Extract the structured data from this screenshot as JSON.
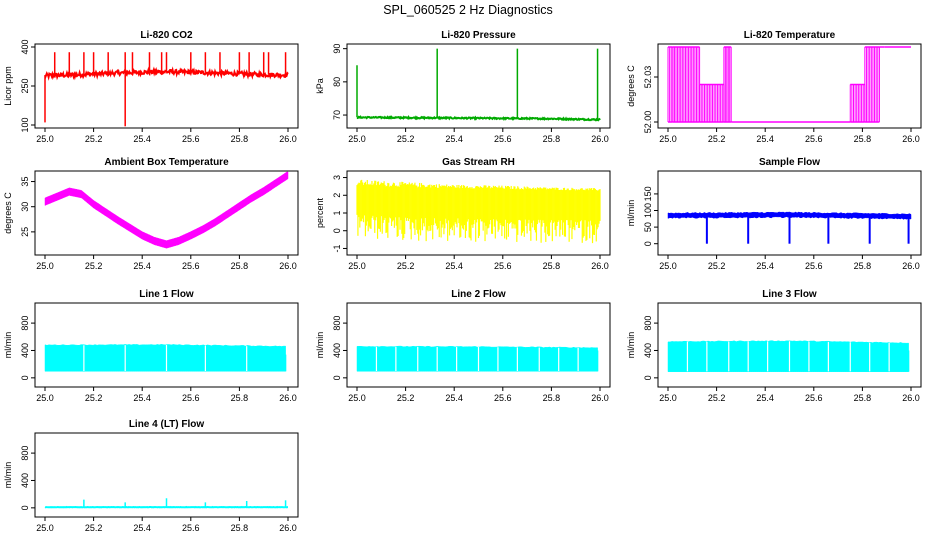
{
  "figure": {
    "title": "SPL_060525  2 Hz Diagnostics"
  },
  "chart_data": [
    {
      "id": "li820-co2",
      "type": "line",
      "title": "Li-820 CO2",
      "xlabel": "",
      "ylabel": "Licor ppm",
      "xlim": [
        25.0,
        26.0
      ],
      "ylim": [
        100,
        400
      ],
      "xticks": [
        25.0,
        25.2,
        25.4,
        25.6,
        25.8,
        26.0
      ],
      "yticks": [
        100,
        250,
        400
      ],
      "xtick_labels": [
        "25.0",
        "25.2",
        "25.4",
        "25.6",
        "25.8",
        "26.0"
      ],
      "ytick_labels": [
        "100",
        "250",
        "400"
      ],
      "color": "#ff0000",
      "series": [
        {
          "name": "CO2",
          "pattern": "baseline_spikes",
          "x": [
            25.0,
            25.1,
            25.2,
            25.3,
            25.4,
            25.5,
            25.6,
            25.7,
            25.8,
            25.9,
            26.0
          ],
          "values": [
            290,
            292,
            296,
            300,
            303,
            305,
            303,
            300,
            297,
            294,
            292
          ],
          "noise": 8,
          "up_spikes": [
            [
              25.04,
              380
            ],
            [
              25.1,
              380
            ],
            [
              25.16,
              380
            ],
            [
              25.2,
              380
            ],
            [
              25.26,
              380
            ],
            [
              25.33,
              380
            ],
            [
              25.36,
              380
            ],
            [
              25.43,
              380
            ],
            [
              25.48,
              380
            ],
            [
              25.5,
              380
            ],
            [
              25.6,
              380
            ],
            [
              25.66,
              380
            ],
            [
              25.72,
              380
            ],
            [
              25.8,
              380
            ],
            [
              25.84,
              380
            ],
            [
              25.9,
              380
            ],
            [
              25.92,
              380
            ],
            [
              25.99,
              380
            ]
          ],
          "down_spikes": [
            [
              25.0,
              110
            ],
            [
              25.33,
              95
            ]
          ]
        }
      ]
    },
    {
      "id": "li820-pressure",
      "type": "line",
      "title": "Li-820 Pressure",
      "xlabel": "",
      "ylabel": "kPa",
      "xlim": [
        25.0,
        26.0
      ],
      "ylim": [
        67,
        90.5
      ],
      "xticks": [
        25.0,
        25.2,
        25.4,
        25.6,
        25.8,
        26.0
      ],
      "yticks": [
        70,
        80,
        90
      ],
      "xtick_labels": [
        "25.0",
        "25.2",
        "25.4",
        "25.6",
        "25.8",
        "26.0"
      ],
      "ytick_labels": [
        "70",
        "80",
        "90"
      ],
      "color": "#00aa00",
      "series": [
        {
          "name": "Pressure",
          "pattern": "baseline_spikes",
          "x": [
            25.0,
            25.2,
            25.4,
            25.6,
            25.8,
            26.0
          ],
          "values": [
            69.3,
            69.2,
            69.1,
            69.0,
            68.9,
            68.6
          ],
          "noise": 0.2,
          "up_spikes": [
            [
              25.0,
              85
            ],
            [
              25.33,
              90
            ],
            [
              25.66,
              90
            ],
            [
              25.99,
              90
            ]
          ],
          "down_spikes": []
        }
      ]
    },
    {
      "id": "li820-temperature",
      "type": "line",
      "title": "Li-820 Temperature",
      "xlabel": "",
      "ylabel": "degrees C",
      "xlim": [
        25.0,
        26.0
      ],
      "ylim": [
        51.998,
        52.05
      ],
      "xticks": [
        25.0,
        25.2,
        25.4,
        25.6,
        25.8,
        26.0
      ],
      "yticks": [
        52.0,
        52.03
      ],
      "xtick_labels": [
        "25.0",
        "25.2",
        "25.4",
        "25.6",
        "25.8",
        "26.0"
      ],
      "ytick_labels": [
        "52.00",
        "52.03"
      ],
      "color": "#ff00ff",
      "series": [
        {
          "name": "Temperature",
          "pattern": "quantized_band",
          "segments": [
            [
              25.0,
              25.02,
              52.0,
              52.05
            ],
            [
              25.02,
              25.13,
              52.0,
              52.05
            ],
            [
              25.13,
              25.23,
              52.0,
              52.025
            ],
            [
              25.23,
              25.26,
              52.0,
              52.05
            ],
            [
              25.26,
              25.75,
              52.0,
              52.0
            ],
            [
              25.75,
              25.81,
              52.0,
              52.025
            ],
            [
              25.81,
              25.87,
              52.0,
              52.05
            ],
            [
              25.87,
              25.89,
              52.05,
              52.05
            ],
            [
              25.89,
              26.0,
              52.05,
              52.05
            ]
          ]
        }
      ]
    },
    {
      "id": "ambient-box-temperature",
      "type": "line",
      "title": "Ambient Box Temperature",
      "xlabel": "",
      "ylabel": "degrees C",
      "xlim": [
        25.0,
        26.0
      ],
      "ylim": [
        21,
        36.5
      ],
      "xticks": [
        25.0,
        25.2,
        25.4,
        25.6,
        25.8,
        26.0
      ],
      "yticks": [
        25,
        30,
        35
      ],
      "xtick_labels": [
        "25.0",
        "25.2",
        "25.4",
        "25.6",
        "25.8",
        "26.0"
      ],
      "ytick_labels": [
        "25",
        "30",
        "35"
      ],
      "color": "#ff00ff",
      "series": [
        {
          "name": "Ambient",
          "pattern": "band",
          "x": [
            25.0,
            25.05,
            25.1,
            25.15,
            25.2,
            25.25,
            25.3,
            25.35,
            25.4,
            25.45,
            25.5,
            25.55,
            25.6,
            25.65,
            25.7,
            25.75,
            25.8,
            25.85,
            25.9,
            25.95,
            26.0
          ],
          "values": [
            31,
            32,
            33,
            32.5,
            30.5,
            28.9,
            27.3,
            25.8,
            24.3,
            23.2,
            22.5,
            23.2,
            24.3,
            25.5,
            26.9,
            28.5,
            30.1,
            31.7,
            33.1,
            34.7,
            36.3
          ],
          "halfwidth": 0.75
        }
      ]
    },
    {
      "id": "gas-stream-rh",
      "type": "line",
      "title": "Gas Stream RH",
      "xlabel": "",
      "ylabel": "percent",
      "xlim": [
        25.0,
        26.0
      ],
      "ylim": [
        -1.2,
        3.2
      ],
      "xticks": [
        25.0,
        25.2,
        25.4,
        25.6,
        25.8,
        26.0
      ],
      "yticks": [
        -1,
        0,
        1,
        2,
        3
      ],
      "xtick_labels": [
        "25.0",
        "25.2",
        "25.4",
        "25.6",
        "25.8",
        "26.0"
      ],
      "ytick_labels": [
        "-1",
        "0",
        "1",
        "2",
        "3"
      ],
      "color": "#ffff00",
      "series": [
        {
          "name": "RH",
          "pattern": "envelope",
          "x": [
            25.0,
            25.2,
            25.4,
            25.6,
            25.8,
            26.0
          ],
          "upper": [
            2.9,
            2.75,
            2.6,
            2.55,
            2.45,
            2.4
          ],
          "core_upper": [
            2.55,
            2.45,
            2.4,
            2.35,
            2.3,
            2.25
          ],
          "core_lower": [
            0.9,
            0.75,
            0.7,
            0.65,
            0.6,
            0.6
          ],
          "lower": [
            -0.5,
            -0.6,
            -0.7,
            -0.7,
            -0.75,
            -0.7
          ]
        }
      ]
    },
    {
      "id": "sample-flow",
      "type": "line",
      "title": "Sample Flow",
      "xlabel": "",
      "ylabel": "ml/min",
      "xlim": [
        25.0,
        26.0
      ],
      "ylim": [
        -25,
        210
      ],
      "xticks": [
        25.0,
        25.2,
        25.4,
        25.6,
        25.8,
        26.0
      ],
      "yticks": [
        0,
        50,
        100,
        150
      ],
      "xtick_labels": [
        "25.0",
        "25.2",
        "25.4",
        "25.6",
        "25.8",
        "26.0"
      ],
      "ytick_labels": [
        "0",
        "50",
        "100",
        "150"
      ],
      "color": "#0000ff",
      "series": [
        {
          "name": "Sample",
          "pattern": "band_gaps",
          "x": [
            25.0,
            25.5,
            26.0
          ],
          "values": [
            85,
            87,
            82
          ],
          "halfwidth": 9,
          "gaps": [
            25.16,
            25.33,
            25.5,
            25.66,
            25.83,
            25.99
          ],
          "gap_min": 0
        }
      ]
    },
    {
      "id": "line-1-flow",
      "type": "line",
      "title": "Line 1 Flow",
      "xlabel": "",
      "ylabel": "ml/min",
      "xlim": [
        25.0,
        26.0
      ],
      "ylim": [
        -90,
        1050
      ],
      "xticks": [
        25.0,
        25.2,
        25.4,
        25.6,
        25.8,
        26.0
      ],
      "yticks": [
        0,
        400,
        800
      ],
      "xtick_labels": [
        "25.0",
        "25.2",
        "25.4",
        "25.6",
        "25.8",
        "26.0"
      ],
      "ytick_labels": [
        "0",
        "400",
        "800"
      ],
      "color": "#00ffff",
      "series": [
        {
          "name": "Line 1",
          "pattern": "block",
          "x": [
            25.0,
            25.5,
            26.0
          ],
          "upper": [
            480,
            485,
            460
          ],
          "lower": [
            95,
            95,
            95
          ],
          "dividers": [
            25.16,
            25.33,
            25.5,
            25.66,
            25.83
          ],
          "end_spike": [
            25.99,
            340
          ]
        }
      ]
    },
    {
      "id": "line-2-flow",
      "type": "line",
      "title": "Line 2 Flow",
      "xlabel": "",
      "ylabel": "ml/min",
      "xlim": [
        25.0,
        26.0
      ],
      "ylim": [
        -90,
        1050
      ],
      "xticks": [
        25.0,
        25.2,
        25.4,
        25.6,
        25.8,
        26.0
      ],
      "yticks": [
        0,
        400,
        800
      ],
      "xtick_labels": [
        "25.0",
        "25.2",
        "25.4",
        "25.6",
        "25.8",
        "26.0"
      ],
      "ytick_labels": [
        "0",
        "400",
        "800"
      ],
      "color": "#00ffff",
      "series": [
        {
          "name": "Line 2",
          "pattern": "block",
          "x": [
            25.0,
            25.5,
            26.0
          ],
          "upper": [
            460,
            455,
            440
          ],
          "lower": [
            95,
            95,
            95
          ],
          "dividers": [
            25.08,
            25.16,
            25.25,
            25.33,
            25.41,
            25.5,
            25.58,
            25.66,
            25.75,
            25.83,
            25.91
          ],
          "end_spike": [
            25.99,
            400
          ]
        }
      ]
    },
    {
      "id": "line-3-flow",
      "type": "line",
      "title": "Line 3 Flow",
      "xlabel": "",
      "ylabel": "ml/min",
      "xlim": [
        25.0,
        26.0
      ],
      "ylim": [
        -90,
        1050
      ],
      "xticks": [
        25.0,
        25.2,
        25.4,
        25.6,
        25.8,
        26.0
      ],
      "yticks": [
        0,
        400,
        800
      ],
      "xtick_labels": [
        "25.0",
        "25.2",
        "25.4",
        "25.6",
        "25.8",
        "26.0"
      ],
      "ytick_labels": [
        "0",
        "400",
        "800"
      ],
      "color": "#00ffff",
      "series": [
        {
          "name": "Line 3",
          "pattern": "block",
          "x": [
            25.0,
            25.5,
            26.0
          ],
          "upper": [
            530,
            540,
            510
          ],
          "lower": [
            90,
            90,
            90
          ],
          "dividers": [
            25.08,
            25.16,
            25.25,
            25.33,
            25.41,
            25.5,
            25.58,
            25.66,
            25.75,
            25.83,
            25.91
          ],
          "end_spike": [
            25.99,
            400
          ]
        }
      ]
    },
    {
      "id": "line-4-lt-flow",
      "type": "line",
      "title": "Line 4 (LT) Flow",
      "xlabel": "",
      "ylabel": "ml/min",
      "xlim": [
        25.0,
        26.0
      ],
      "ylim": [
        -90,
        1050
      ],
      "xticks": [
        25.0,
        25.2,
        25.4,
        25.6,
        25.8,
        26.0
      ],
      "yticks": [
        0,
        400,
        800
      ],
      "xtick_labels": [
        "25.0",
        "25.2",
        "25.4",
        "25.6",
        "25.8",
        "26.0"
      ],
      "ytick_labels": [
        "0",
        "400",
        "800"
      ],
      "color": "#00ffff",
      "series": [
        {
          "name": "Line 4",
          "pattern": "baseline_spikes",
          "x": [
            25.0,
            26.0
          ],
          "values": [
            10,
            10
          ],
          "noise": 2,
          "up_spikes": [
            [
              25.16,
              120
            ],
            [
              25.33,
              80
            ],
            [
              25.5,
              140
            ],
            [
              25.66,
              80
            ],
            [
              25.83,
              100
            ],
            [
              25.99,
              110
            ]
          ],
          "down_spikes": []
        }
      ]
    }
  ]
}
